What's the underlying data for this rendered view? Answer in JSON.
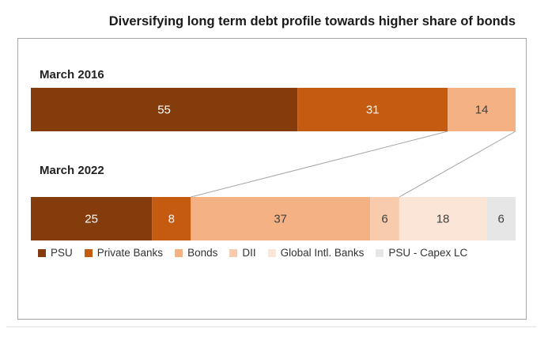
{
  "chart_data": {
    "type": "bar",
    "title": "Diversifying long term debt profile towards higher share of bonds",
    "categories": [
      "March 2016",
      "March 2022"
    ],
    "series": [
      {
        "name": "PSU",
        "color": "#843c0c",
        "values": [
          55,
          25
        ]
      },
      {
        "name": "Private Banks",
        "color": "#c55a11",
        "values": [
          31,
          8
        ]
      },
      {
        "name": "Bonds",
        "color": "#f4b183",
        "values": [
          14,
          37
        ]
      },
      {
        "name": "DII",
        "color": "#f8cbad",
        "values": [
          0,
          6
        ]
      },
      {
        "name": "Global Intl. Banks",
        "color": "#fbe5d6",
        "values": [
          0,
          18
        ]
      },
      {
        "name": "PSU - Capex LC",
        "color": "#e7e6e6",
        "values": [
          0,
          6
        ]
      }
    ],
    "data_label_colors": [
      "#ffffff",
      "#f6f6f6",
      "#404040",
      "#404040",
      "#404040",
      "#404040"
    ],
    "orientation": "horizontal-stacked",
    "legend_position": "bottom",
    "connector_lines": "Bonds segment of March 2016 expanded to Bonds + DII of March 2022"
  }
}
